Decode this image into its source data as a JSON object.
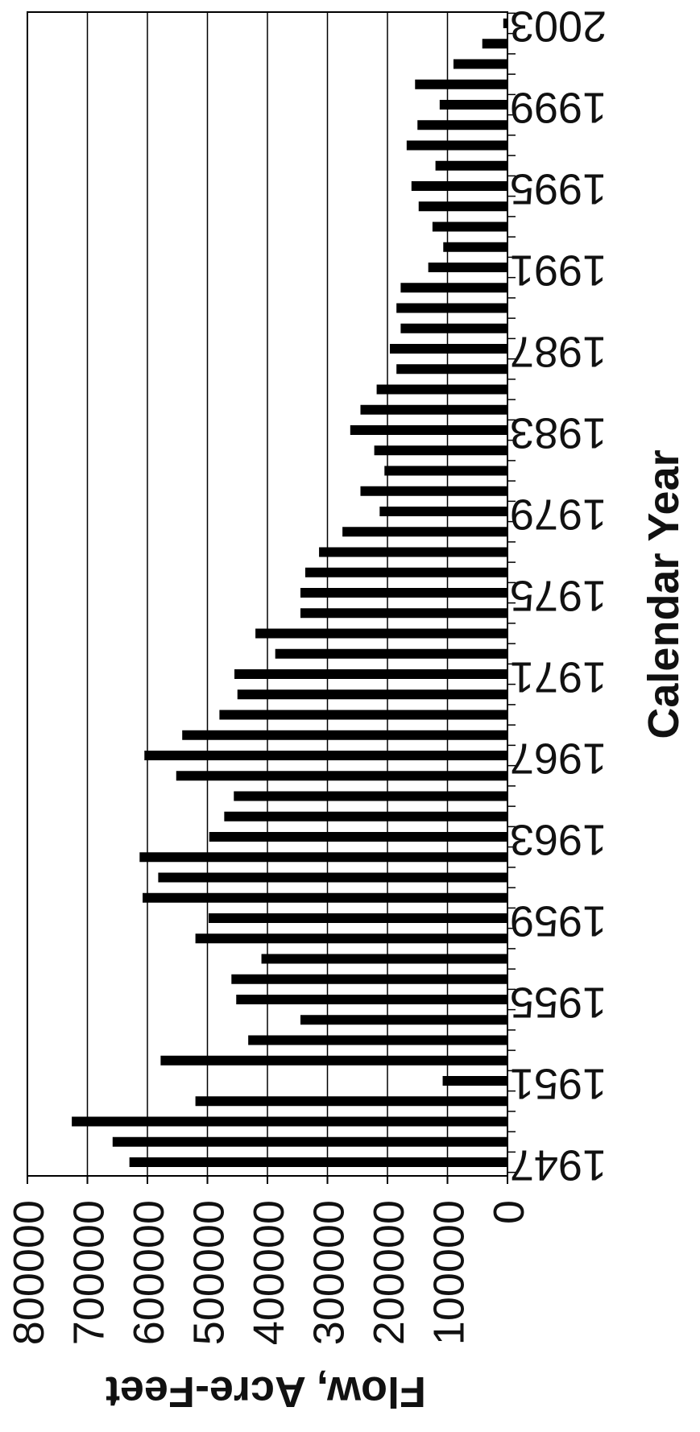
{
  "chart_data": {
    "type": "bar",
    "orientation": "horizontal",
    "title": "",
    "xlabel": "Calendar Year",
    "ylabel": "Flow, Acre-Feet",
    "ylim": [
      0,
      800000
    ],
    "y_ticks": [
      "0",
      "100000",
      "200000",
      "300000",
      "400000",
      "500000",
      "600000",
      "700000",
      "800000"
    ],
    "x_tick_labels": [
      "1947",
      "1951",
      "1955",
      "1959",
      "1963",
      "1967",
      "1971",
      "1975",
      "1979",
      "1983",
      "1987",
      "1991",
      "1995",
      "1999",
      "2003"
    ],
    "grid": true,
    "bar_color": "#000000",
    "categories": [
      1947,
      1948,
      1949,
      1950,
      1951,
      1952,
      1953,
      1954,
      1955,
      1956,
      1957,
      1958,
      1959,
      1960,
      1961,
      1962,
      1963,
      1964,
      1965,
      1966,
      1967,
      1968,
      1969,
      1970,
      1971,
      1972,
      1973,
      1974,
      1975,
      1976,
      1977,
      1978,
      1979,
      1980,
      1981,
      1982,
      1983,
      1984,
      1985,
      1986,
      1987,
      1988,
      1989,
      1990,
      1991,
      1992,
      1993,
      1994,
      1995,
      1996,
      1997,
      1998,
      1999,
      2000,
      2001,
      2002,
      2003
    ],
    "values": [
      630000,
      658000,
      726000,
      520000,
      108000,
      578000,
      432000,
      345000,
      452000,
      460000,
      410000,
      520000,
      498000,
      608000,
      582000,
      613000,
      497000,
      472000,
      456000,
      552000,
      605000,
      542000,
      480000,
      450000,
      455000,
      387000,
      420000,
      345000,
      345000,
      337000,
      314000,
      275000,
      213000,
      245000,
      205000,
      222000,
      262000,
      245000,
      218000,
      185000,
      196000,
      178000,
      185000,
      178000,
      132000,
      107000,
      125000,
      148000,
      160000,
      120000,
      168000,
      150000,
      113000,
      154000,
      90000,
      42000,
      7000
    ]
  }
}
